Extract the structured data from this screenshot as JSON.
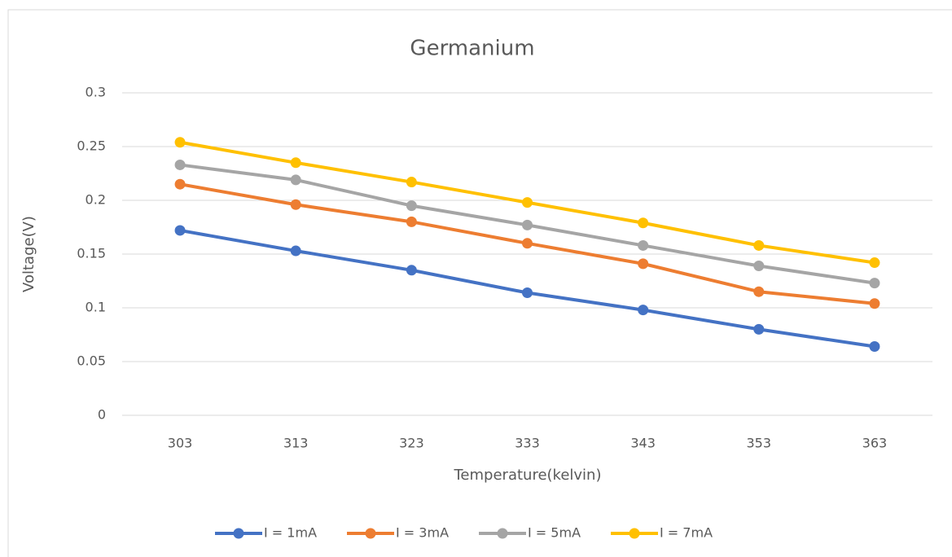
{
  "chart_data": {
    "type": "line",
    "title": "Germanium",
    "x_label": "Temperature(kelvin)",
    "y_label": "Voltage(V)",
    "categories": [
      "303",
      "313",
      "323",
      "333",
      "343",
      "353",
      "363"
    ],
    "series": [
      {
        "name": "I = 1mA",
        "color": "#4472c4",
        "values": [
          0.172,
          0.153,
          0.135,
          0.114,
          0.098,
          0.08,
          0.064
        ]
      },
      {
        "name": "I = 3mA",
        "color": "#ed7d31",
        "values": [
          0.215,
          0.196,
          0.18,
          0.16,
          0.141,
          0.115,
          0.104
        ]
      },
      {
        "name": "I = 5mA",
        "color": "#a5a5a5",
        "values": [
          0.233,
          0.219,
          0.195,
          0.177,
          0.158,
          0.139,
          0.123
        ]
      },
      {
        "name": "I = 7mA",
        "color": "#ffc000",
        "values": [
          0.254,
          0.235,
          0.217,
          0.198,
          0.179,
          0.158,
          0.142
        ]
      }
    ],
    "ylim": [
      0,
      0.3
    ],
    "yticks": [
      0,
      0.05,
      0.1,
      0.15,
      0.2,
      0.25,
      0.3
    ],
    "grid": true,
    "legend": "bottom"
  }
}
